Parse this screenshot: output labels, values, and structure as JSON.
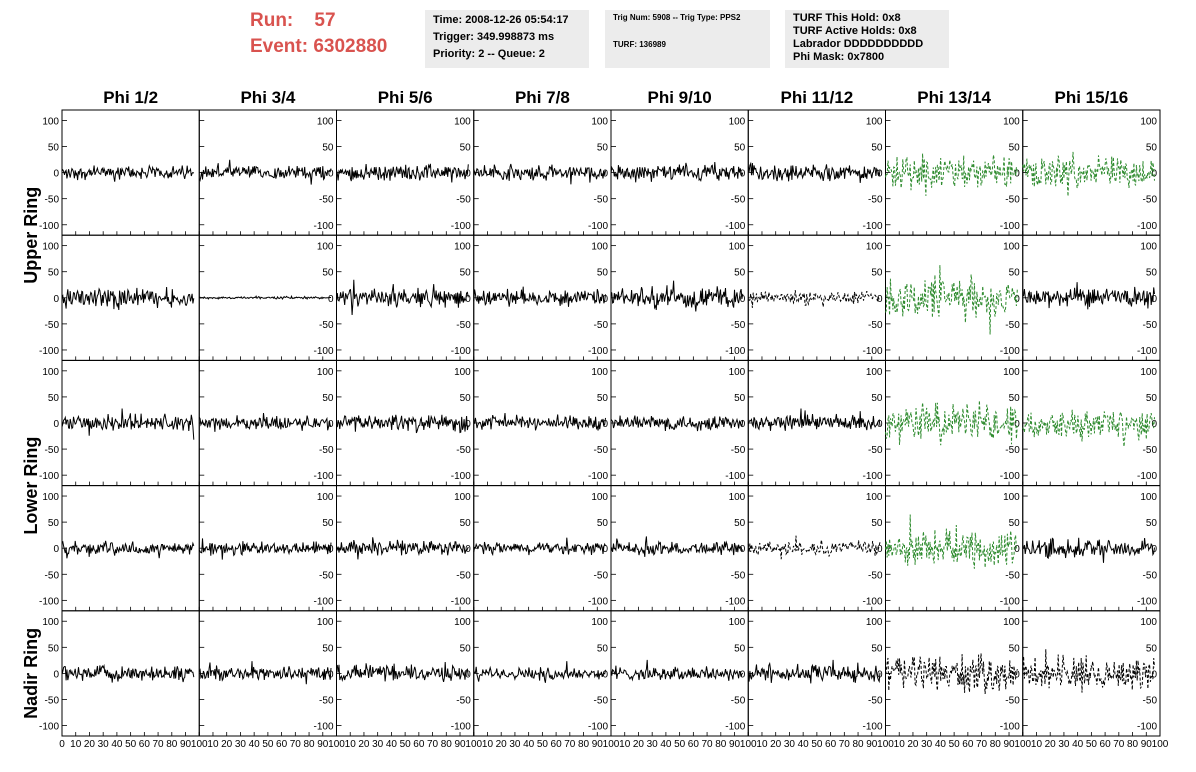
{
  "header": {
    "run_label": "Run:",
    "run_value": "57",
    "event_label": "Event:",
    "event_value": "6302880",
    "time": "Time: 2008-12-26 05:54:17",
    "trigger": "Trigger: 349.998873 ms",
    "priority": "Priority: 2 -- Queue: 2",
    "trig_num": "Trig Num: 5908 -- Trig Type: PPS2",
    "turf": "TURF: 136989",
    "turf_this_hold": "TURF This Hold: 0x8",
    "turf_active_holds": "TURF Active Holds: 0x8",
    "labrador": "Labrador DDDDDDDDDD",
    "phi_mask": "Phi Mask: 0x7800"
  },
  "colors": {
    "header_red": "#d9534f",
    "trace_default": "#000000",
    "trace_masked": "#2e8b2e",
    "panel_bg": "#ececec"
  },
  "chart_data": {
    "type": "line",
    "columns": [
      "Phi 1/2",
      "Phi 3/4",
      "Phi 5/6",
      "Phi 7/8",
      "Phi 9/10",
      "Phi 11/12",
      "Phi 13/14",
      "Phi 15/16"
    ],
    "row_groups": [
      "Upper Ring",
      "Lower Ring",
      "Nadir Ring"
    ],
    "rows_per_group": [
      2,
      2,
      1
    ],
    "xlim": [
      0,
      100
    ],
    "ylim": [
      -120,
      120
    ],
    "x_tick_labels": [
      "0",
      "10",
      "20",
      "30",
      "40",
      "50",
      "60",
      "70",
      "80",
      "90",
      "100"
    ],
    "y_tick_labels": [
      "100",
      "50",
      "0",
      "-50",
      "-100"
    ],
    "y_ticks": [
      100,
      50,
      0,
      -50,
      -100
    ],
    "x_ticks": [
      0,
      10,
      20,
      30,
      40,
      50,
      60,
      70,
      80,
      90,
      100
    ],
    "trace_x_range": [
      0,
      96
    ],
    "traces": [
      [
        {
          "amp": 12,
          "style": "solid",
          "color": "black"
        },
        {
          "amp": 12,
          "style": "solid",
          "color": "black"
        },
        {
          "amp": 14,
          "style": "solid",
          "color": "black"
        },
        {
          "amp": 13,
          "style": "solid",
          "color": "black"
        },
        {
          "amp": 14,
          "style": "solid",
          "color": "black"
        },
        {
          "amp": 14,
          "style": "solid",
          "color": "black"
        },
        {
          "amp": 28,
          "style": "dashed",
          "color": "green"
        },
        {
          "amp": 28,
          "style": "dashed",
          "color": "green"
        }
      ],
      [
        {
          "amp": 16,
          "style": "solid",
          "color": "black"
        },
        {
          "amp": 2,
          "style": "solid",
          "color": "black"
        },
        {
          "amp": 16,
          "style": "solid",
          "color": "black"
        },
        {
          "amp": 14,
          "style": "solid",
          "color": "black"
        },
        {
          "amp": 16,
          "style": "solid",
          "color": "black"
        },
        {
          "amp": 12,
          "style": "dashed",
          "color": "black"
        },
        {
          "amp": 40,
          "style": "dashed",
          "color": "green"
        },
        {
          "amp": 18,
          "style": "solid",
          "color": "black"
        }
      ],
      [
        {
          "amp": 15,
          "style": "solid",
          "color": "black"
        },
        {
          "amp": 12,
          "style": "solid",
          "color": "black"
        },
        {
          "amp": 14,
          "style": "solid",
          "color": "black"
        },
        {
          "amp": 12,
          "style": "solid",
          "color": "black"
        },
        {
          "amp": 14,
          "style": "solid",
          "color": "black"
        },
        {
          "amp": 14,
          "style": "solid",
          "color": "black"
        },
        {
          "amp": 34,
          "style": "dashed",
          "color": "green"
        },
        {
          "amp": 26,
          "style": "dashed",
          "color": "green"
        }
      ],
      [
        {
          "amp": 12,
          "style": "solid",
          "color": "black"
        },
        {
          "amp": 11,
          "style": "solid",
          "color": "black"
        },
        {
          "amp": 12,
          "style": "solid",
          "color": "black"
        },
        {
          "amp": 10,
          "style": "solid",
          "color": "black"
        },
        {
          "amp": 11,
          "style": "solid",
          "color": "black"
        },
        {
          "amp": 14,
          "style": "dashed",
          "color": "black"
        },
        {
          "amp": 34,
          "style": "dashed",
          "color": "green"
        },
        {
          "amp": 16,
          "style": "solid",
          "color": "black"
        }
      ],
      [
        {
          "amp": 14,
          "style": "solid",
          "color": "black"
        },
        {
          "amp": 12,
          "style": "solid",
          "color": "black"
        },
        {
          "amp": 14,
          "style": "solid",
          "color": "black"
        },
        {
          "amp": 11,
          "style": "solid",
          "color": "black"
        },
        {
          "amp": 12,
          "style": "solid",
          "color": "black"
        },
        {
          "amp": 15,
          "style": "solid",
          "color": "black"
        },
        {
          "amp": 32,
          "style": "dashed",
          "color": "black"
        },
        {
          "amp": 28,
          "style": "dashed",
          "color": "black"
        }
      ]
    ]
  }
}
